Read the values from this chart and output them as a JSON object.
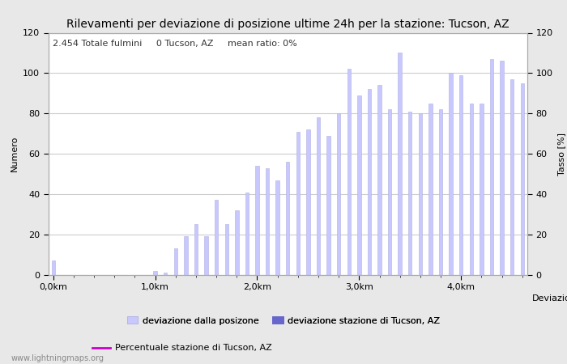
{
  "title": "Rilevamenti per deviazione di posizione ultime 24h per la stazione: Tucson, AZ",
  "subtitle": "2.454 Totale fulmini     0 Tucson, AZ     mean ratio: 0%",
  "xlabel": "Deviazioni",
  "ylabel_left": "Numero",
  "ylabel_right": "Tasso [%]",
  "bar_values": [
    7,
    0,
    0,
    0,
    0,
    0,
    0,
    0,
    0,
    0,
    2,
    1,
    13,
    19,
    25,
    19,
    37,
    25,
    32,
    41,
    54,
    53,
    47,
    56,
    71,
    72,
    78,
    69,
    80,
    102,
    89,
    92,
    94,
    82,
    110,
    81,
    80,
    85,
    82,
    100,
    99,
    85,
    85,
    107,
    106,
    97,
    95
  ],
  "bar_color_light": "#c8c8ff",
  "bar_color_dark": "#6666cc",
  "bar_edge_color": "#b0b0e0",
  "background_color": "#e8e8e8",
  "plot_bg_color": "#ffffff",
  "grid_color": "#cccccc",
  "ylim": [
    0,
    120
  ],
  "xtick_positions": [
    0,
    10,
    20,
    30,
    40
  ],
  "xtick_labels": [
    "0,0km",
    "1,0km",
    "2,0km",
    "3,0km",
    "4,0km"
  ],
  "ytick_positions": [
    0,
    20,
    40,
    60,
    80,
    100,
    120
  ],
  "legend_label_light": "deviazione dalla posizone",
  "legend_label_dark": "deviazione stazione di Tucson, AZ",
  "legend_label_line": "Percentuale stazione di Tucson, AZ",
  "line_color": "#cc00cc",
  "watermark": "www.lightningmaps.org",
  "title_fontsize": 10,
  "subtitle_fontsize": 8,
  "axis_fontsize": 8,
  "tick_fontsize": 8
}
